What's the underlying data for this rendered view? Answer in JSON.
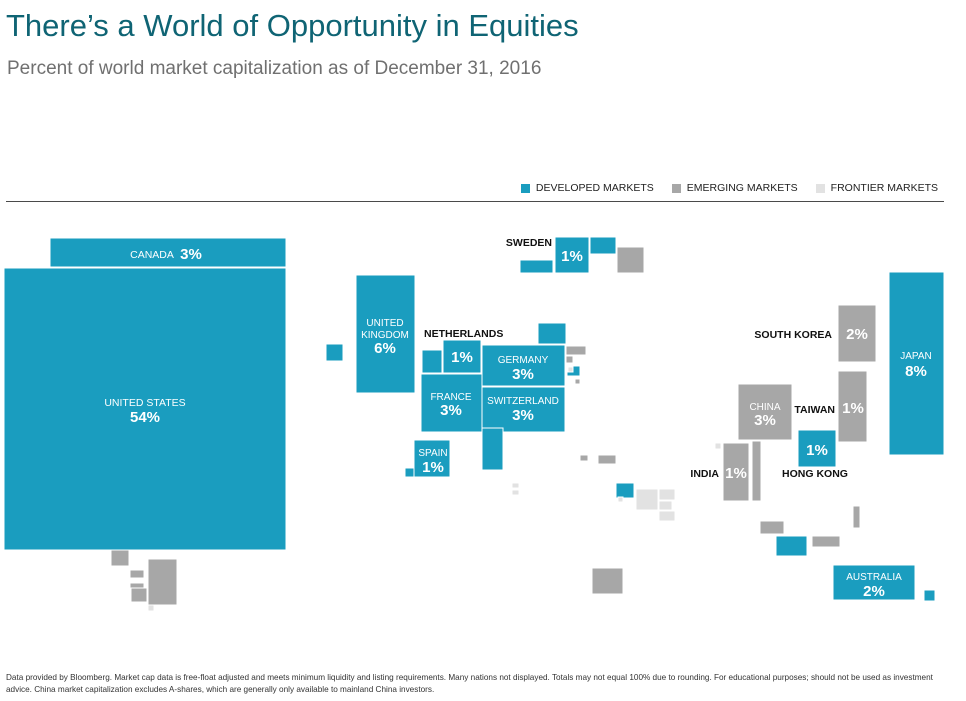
{
  "title": "There’s a World of Opportunity in Equities",
  "subtitle": "Percent of world market capitalization as of December 31, 2016",
  "colors": {
    "developed": "#1a9dbf",
    "emerging": "#a7a7a7",
    "frontier": "#e2e2e2",
    "title": "#0f6474",
    "label_on_tile": "#ffffff",
    "label_outside": "#111111"
  },
  "legend": [
    {
      "key": "developed",
      "label": "DEVELOPED MARKETS"
    },
    {
      "key": "emerging",
      "label": "EMERGING MARKETS"
    },
    {
      "key": "frontier",
      "label": "FRONTIER MARKETS"
    }
  ],
  "footnote": "Data provided by Bloomberg. Market cap data is free-float adjusted and meets minimum liquidity and listing requirements. Many nations not displayed. Totals may not equal 100% due to rounding. For educational purposes; should not be used as investment advice. China market capitalization excludes A-shares, which are generally only available to mainland China investors.",
  "chart_data": {
    "type": "treemap-map",
    "unit": "percent of world market capitalization",
    "labeled_markets": [
      {
        "name": "UNITED STATES",
        "value": "54%",
        "category": "developed"
      },
      {
        "name": "CANADA",
        "value": "3%",
        "category": "developed"
      },
      {
        "name": "UNITED KINGDOM",
        "value": "6%",
        "category": "developed"
      },
      {
        "name": "NETHERLANDS",
        "value": "1%",
        "category": "developed"
      },
      {
        "name": "GERMANY",
        "value": "3%",
        "category": "developed"
      },
      {
        "name": "FRANCE",
        "value": "3%",
        "category": "developed"
      },
      {
        "name": "SWITZERLAND",
        "value": "3%",
        "category": "developed"
      },
      {
        "name": "SPAIN",
        "value": "1%",
        "category": "developed"
      },
      {
        "name": "SWEDEN",
        "value": "1%",
        "category": "developed"
      },
      {
        "name": "SOUTH KOREA",
        "value": "2%",
        "category": "emerging"
      },
      {
        "name": "JAPAN",
        "value": "8%",
        "category": "developed"
      },
      {
        "name": "CHINA",
        "value": "3%",
        "category": "emerging"
      },
      {
        "name": "TAIWAN",
        "value": "1%",
        "category": "emerging"
      },
      {
        "name": "HONG KONG",
        "value": "1%",
        "category": "developed"
      },
      {
        "name": "INDIA",
        "value": "1%",
        "category": "emerging"
      },
      {
        "name": "AUSTRALIA",
        "value": "2%",
        "category": "developed"
      }
    ]
  }
}
